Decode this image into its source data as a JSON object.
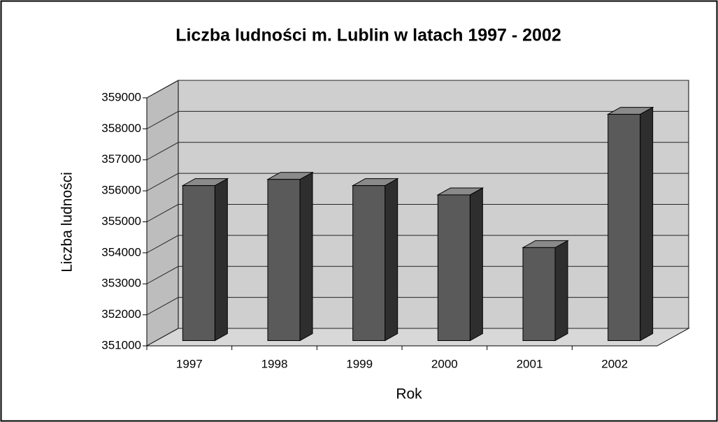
{
  "chart_data": {
    "type": "bar3d",
    "title": "Liczba ludności m. Lublin w latach 1997 - 2002",
    "x_label": "Rok",
    "y_label": "Liczba ludności",
    "categories": [
      "1997",
      "1998",
      "1999",
      "2000",
      "2001",
      "2002"
    ],
    "values": [
      356000,
      356200,
      356000,
      355700,
      354000,
      358300
    ],
    "color": "#5a5a5a",
    "ylim": [
      351000,
      359000
    ],
    "yticks": [
      351000,
      352000,
      353000,
      354000,
      355000,
      356000,
      357000,
      358000,
      359000
    ],
    "grid": true
  }
}
